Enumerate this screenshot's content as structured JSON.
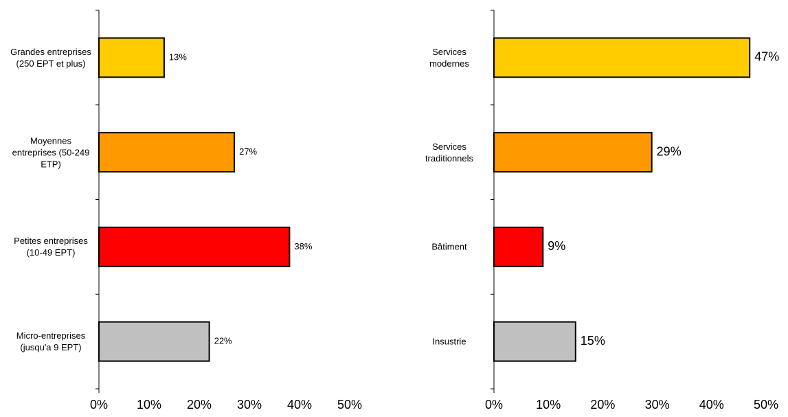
{
  "chart_data": [
    {
      "type": "hbar",
      "categories": [
        "Grandes entreprises (250 EPT et plus)",
        "Moyennes entreprises (50-249 ETP)",
        "Petites entreprises (10-49 EPT)",
        "Micro-entreprises (jusqu'a 9 EPT)"
      ],
      "values": [
        13,
        27,
        38,
        22
      ],
      "value_labels": [
        "13%",
        "27%",
        "38%",
        "22%"
      ],
      "colors": [
        "#ffcc00",
        "#ff9900",
        "#ff0000",
        "#c0c0c0"
      ],
      "xlim": [
        0,
        50
      ],
      "xticks": [
        {
          "value": 0,
          "label": "0%"
        },
        {
          "value": 10,
          "label": "10%"
        },
        {
          "value": 20,
          "label": "20%"
        },
        {
          "value": 30,
          "label": "30%"
        },
        {
          "value": 40,
          "label": "40%"
        },
        {
          "value": 50,
          "label": "50%"
        }
      ],
      "grid": false
    },
    {
      "type": "hbar",
      "categories": [
        "Services modernes",
        "Services traditionnels",
        "Bâtiment",
        "Insustrie"
      ],
      "values": [
        47,
        29,
        9,
        15
      ],
      "value_labels": [
        "47%",
        "29%",
        "9%",
        "15%"
      ],
      "colors": [
        "#ffcc00",
        "#ff9900",
        "#ff0000",
        "#c0c0c0"
      ],
      "xlim": [
        0,
        50
      ],
      "xticks": [
        {
          "value": 0,
          "label": "0%"
        },
        {
          "value": 10,
          "label": "10%"
        },
        {
          "value": 20,
          "label": "20%"
        },
        {
          "value": 30,
          "label": "30%"
        },
        {
          "value": 40,
          "label": "40%"
        },
        {
          "value": 50,
          "label": "50%"
        }
      ],
      "grid": false
    }
  ]
}
